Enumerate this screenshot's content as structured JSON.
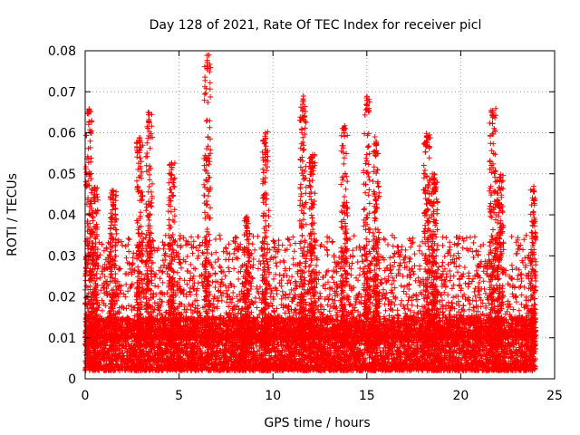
{
  "chart_data": {
    "type": "scatter",
    "title": "Day 128 of 2021, Rate Of TEC Index for receiver picl",
    "xlabel": "GPS time / hours",
    "ylabel": "ROTI / TECUs",
    "xlim": [
      0,
      25
    ],
    "ylim": [
      0,
      0.08
    ],
    "x_ticks": [
      "0",
      "5",
      "10",
      "15",
      "20",
      "25"
    ],
    "y_ticks": [
      "0",
      "0.01",
      "0.02",
      "0.03",
      "0.04",
      "0.05",
      "0.06",
      "0.07",
      "0.08"
    ],
    "grid": true,
    "marker": "+",
    "series": [
      {
        "name": "ROTI",
        "color": "#ff0000",
        "x_range_hours": [
          0,
          24
        ],
        "baseline_range": [
          0.002,
          0.015
        ],
        "burst_peaks": [
          {
            "x": 0.2,
            "y": 0.066
          },
          {
            "x": 0.5,
            "y": 0.047
          },
          {
            "x": 1.5,
            "y": 0.046
          },
          {
            "x": 2.9,
            "y": 0.059
          },
          {
            "x": 3.4,
            "y": 0.065
          },
          {
            "x": 4.6,
            "y": 0.053
          },
          {
            "x": 6.5,
            "y": 0.079
          },
          {
            "x": 8.6,
            "y": 0.04
          },
          {
            "x": 9.6,
            "y": 0.061
          },
          {
            "x": 11.6,
            "y": 0.069
          },
          {
            "x": 12.1,
            "y": 0.055
          },
          {
            "x": 13.8,
            "y": 0.062
          },
          {
            "x": 15.0,
            "y": 0.069
          },
          {
            "x": 15.5,
            "y": 0.059
          },
          {
            "x": 18.2,
            "y": 0.06
          },
          {
            "x": 18.6,
            "y": 0.05
          },
          {
            "x": 21.7,
            "y": 0.066
          },
          {
            "x": 22.1,
            "y": 0.05
          },
          {
            "x": 23.9,
            "y": 0.047
          }
        ]
      }
    ]
  }
}
